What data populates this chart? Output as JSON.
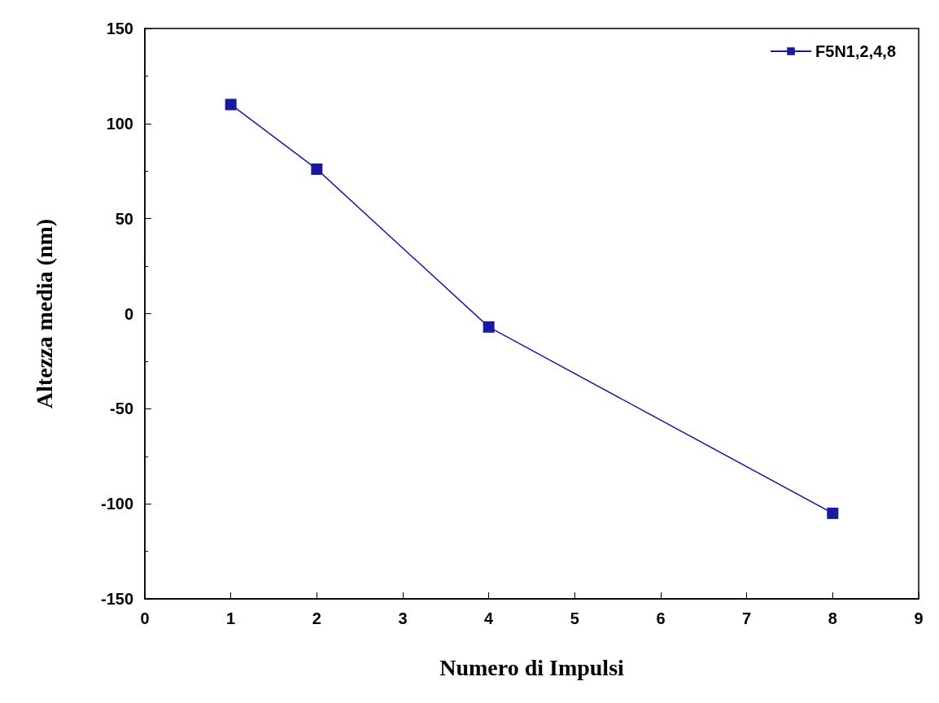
{
  "chart_data": {
    "type": "line",
    "xlabel": "Numero di Impulsi",
    "ylabel": "Altezza media (nm)",
    "x": [
      1,
      2,
      4,
      8
    ],
    "series": [
      {
        "name": "F5N1,2,4,8",
        "color": "#1a1aa0",
        "values": [
          110,
          76,
          -7,
          -105
        ]
      }
    ],
    "xlim": [
      0,
      9
    ],
    "xticks": [
      0,
      1,
      2,
      3,
      4,
      5,
      6,
      7,
      8,
      9
    ],
    "ylim": [
      -150,
      150
    ],
    "yticks": [
      -150,
      -100,
      -50,
      0,
      50,
      100,
      150
    ],
    "legend": "top right",
    "marker": "square",
    "line_style": "solid"
  }
}
